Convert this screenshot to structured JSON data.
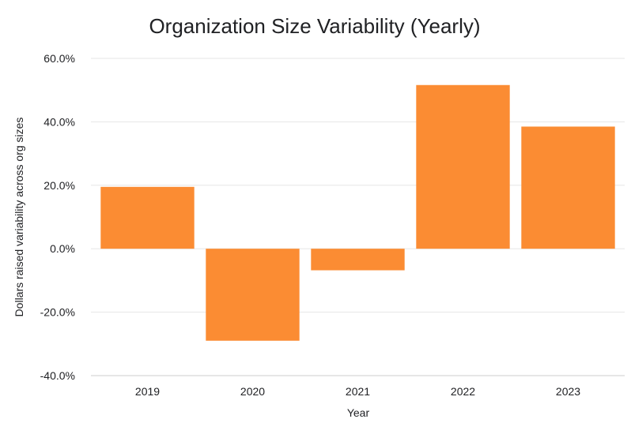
{
  "chart_data": {
    "type": "bar",
    "title": "Organization Size Variability (Yearly)",
    "xlabel": "Year",
    "ylabel": "Dollars raised variability across org sizes",
    "categories": [
      "2019",
      "2020",
      "2021",
      "2022",
      "2023"
    ],
    "values": [
      19.5,
      -29.0,
      -6.8,
      51.6,
      38.5
    ],
    "value_unit": "percent",
    "ylim": [
      -40,
      60
    ],
    "y_ticks": [
      60,
      40,
      20,
      0,
      -20,
      -40
    ],
    "y_tick_labels": [
      "60.0%",
      "40.0%",
      "20.0%",
      "0.0%",
      "-20.0%",
      "-40.0%"
    ],
    "grid": true,
    "bar_color": "#fb8c33",
    "legend": "none"
  }
}
